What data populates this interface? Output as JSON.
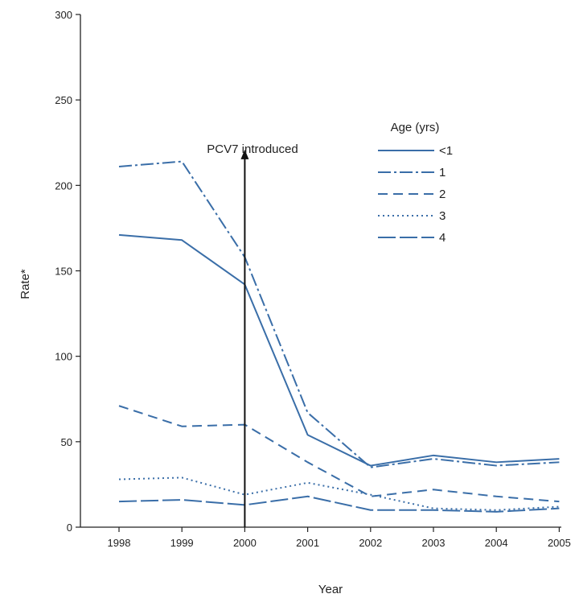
{
  "chart_data": {
    "type": "line",
    "xlabel": "Year",
    "ylabel": "Rate*",
    "ylim": [
      0,
      300
    ],
    "yticks": [
      0,
      50,
      100,
      150,
      200,
      250,
      300
    ],
    "categories": [
      "1998",
      "1999",
      "2000",
      "2001",
      "2002",
      "2003",
      "2004",
      "2005"
    ],
    "legend_title": "Age (yrs)",
    "legend_position": "top-right",
    "grid": false,
    "line_color": "#3a6ea8",
    "series": [
      {
        "name": "<1",
        "dash": "solid",
        "values": [
          171,
          168,
          142,
          54,
          36,
          42,
          38,
          40
        ]
      },
      {
        "name": "1",
        "dash": "longdash-dot",
        "values": [
          211,
          214,
          158,
          67,
          35,
          40,
          36,
          38
        ]
      },
      {
        "name": "2",
        "dash": "dash",
        "values": [
          71,
          59,
          60,
          38,
          18,
          22,
          18,
          15
        ]
      },
      {
        "name": "3",
        "dash": "dot",
        "values": [
          28,
          29,
          19,
          26,
          19,
          11,
          10,
          12
        ]
      },
      {
        "name": "4",
        "dash": "longdash",
        "values": [
          15,
          16,
          13,
          18,
          10,
          10,
          9,
          11
        ]
      }
    ],
    "annotations": [
      {
        "text": "PCV7 introduced",
        "x": "2000",
        "arrow": "up",
        "arrow_to_y": 220
      }
    ]
  }
}
